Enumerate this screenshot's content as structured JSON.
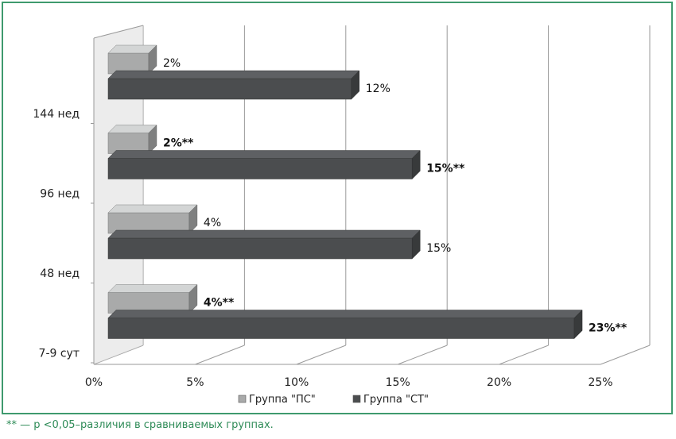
{
  "chart_data": {
    "type": "bar",
    "orientation": "horizontal",
    "categories": [
      "7-9 сут",
      "48 нед",
      "96 нед",
      "144 нед"
    ],
    "series": [
      {
        "name": "Группа \"ПС\"",
        "values": [
          4,
          4,
          2,
          2
        ],
        "labels": [
          "4%**",
          "4%",
          "2%**",
          "2%"
        ],
        "bold": [
          true,
          false,
          true,
          false
        ],
        "color": "#a9aaaa"
      },
      {
        "name": "Группа \"СТ\"",
        "values": [
          23,
          15,
          15,
          12
        ],
        "labels": [
          "23%**",
          "15%",
          "15%**",
          "12%"
        ],
        "bold": [
          true,
          false,
          true,
          false
        ],
        "color": "#4b4d4f"
      }
    ],
    "xlim": [
      0,
      25
    ],
    "xticks": [
      "0%",
      "5%",
      "10%",
      "15%",
      "20%",
      "25%"
    ],
    "grid": true,
    "legend": "bottom"
  },
  "footnote": "** — р <0,05–различия в сравниваемых группах."
}
